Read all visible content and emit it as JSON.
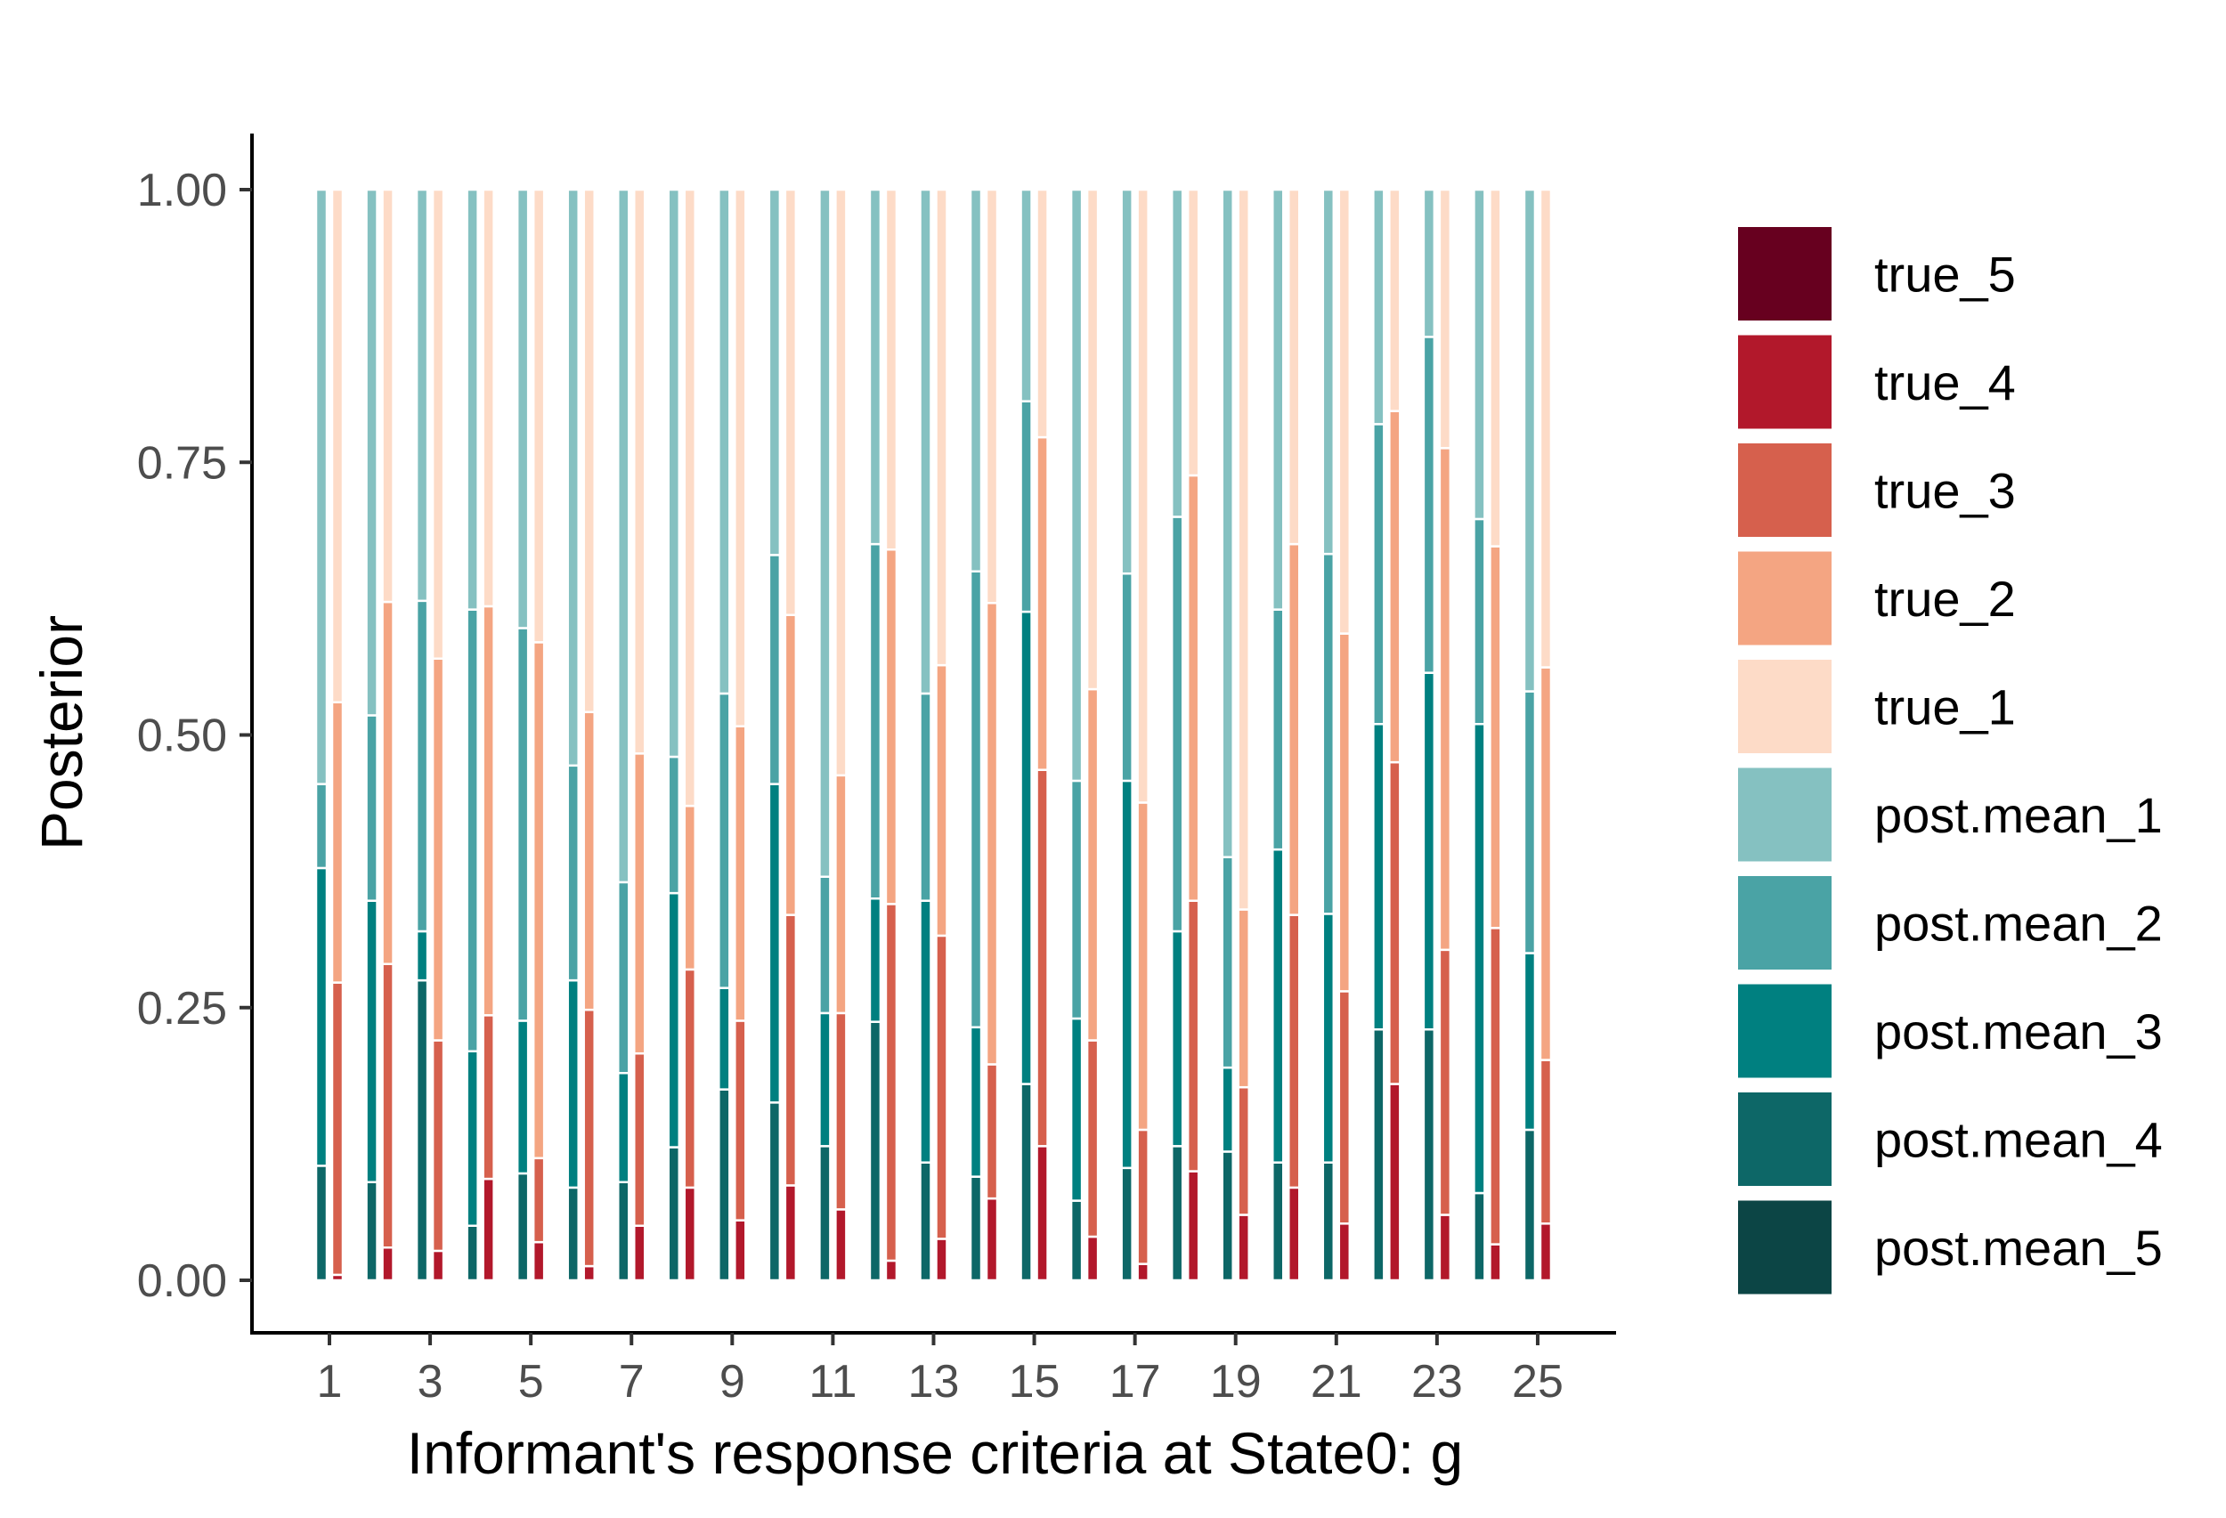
{
  "chart_data": {
    "type": "bar",
    "stacked": true,
    "grouped_pairs": true,
    "xlabel": "Informant's response criteria at State0: g",
    "ylabel": "Posterior",
    "ylim": [
      0,
      1
    ],
    "yticks": [
      "0.00",
      "0.25",
      "0.50",
      "0.75",
      "1.00"
    ],
    "yticks_values": [
      0,
      0.25,
      0.5,
      0.75,
      1.0
    ],
    "xticks": [
      "1",
      "3",
      "5",
      "7",
      "9",
      "11",
      "13",
      "15",
      "17",
      "19",
      "21",
      "23",
      "25"
    ],
    "grid": false,
    "legend_position": "right",
    "legend": [
      {
        "name": "true_5",
        "color": "#67001F"
      },
      {
        "name": "true_4",
        "color": "#B2182B"
      },
      {
        "name": "true_3",
        "color": "#D6604D"
      },
      {
        "name": "true_2",
        "color": "#F4A582"
      },
      {
        "name": "true_1",
        "color": "#FDDBC7"
      },
      {
        "name": "post.mean_1",
        "color": "#85C1C1"
      },
      {
        "name": "post.mean_2",
        "color": "#4AA3A5"
      },
      {
        "name": "post.mean_3",
        "color": "#008080"
      },
      {
        "name": "post.mean_4",
        "color": "#0D6767"
      },
      {
        "name": "post.mean_5",
        "color": "#0C4545"
      }
    ],
    "categories": [
      1,
      2,
      3,
      4,
      5,
      6,
      7,
      8,
      9,
      10,
      11,
      12,
      13,
      14,
      15,
      16,
      17,
      18,
      19,
      20,
      21,
      22,
      23,
      24,
      25
    ],
    "post_mean_series": [
      {
        "name": "post.mean_5",
        "values": [
          0,
          0,
          0,
          0,
          0,
          0,
          0,
          0,
          0,
          0,
          0,
          0,
          0,
          0,
          0,
          0,
          0,
          0,
          0,
          0,
          0,
          0,
          0,
          0,
          0
        ]
      },
      {
        "name": "post.mean_4",
        "values": [
          0.105,
          0.09,
          0.275,
          0.05,
          0.098,
          0.085,
          0.09,
          0.122,
          0.175,
          0.163,
          0.123,
          0.237,
          0.108,
          0.095,
          0.18,
          0.073,
          0.103,
          0.123,
          0.118,
          0.108,
          0.108,
          0.23,
          0.23,
          0.08,
          0.138
        ]
      },
      {
        "name": "post.mean_3",
        "values": [
          0.273,
          0.258,
          0.045,
          0.16,
          0.14,
          0.19,
          0.1,
          0.233,
          0.093,
          0.292,
          0.122,
          0.113,
          0.24,
          0.137,
          0.433,
          0.167,
          0.355,
          0.197,
          0.077,
          0.287,
          0.228,
          0.28,
          0.327,
          0.43,
          0.162
        ]
      },
      {
        "name": "post.mean_2",
        "values": [
          0.077,
          0.17,
          0.303,
          0.405,
          0.36,
          0.197,
          0.175,
          0.125,
          0.27,
          0.21,
          0.125,
          0.325,
          0.19,
          0.418,
          0.193,
          0.218,
          0.19,
          0.38,
          0.193,
          0.22,
          0.33,
          0.275,
          0.308,
          0.188,
          0.24
        ]
      },
      {
        "name": "post.mean_1",
        "values": [
          0.545,
          0.482,
          0.377,
          0.385,
          0.402,
          0.528,
          0.635,
          0.52,
          0.462,
          0.335,
          0.63,
          0.325,
          0.462,
          0.35,
          0.194,
          0.542,
          0.352,
          0.3,
          0.612,
          0.385,
          0.334,
          0.215,
          0.135,
          0.302,
          0.46
        ]
      }
    ],
    "true_series": [
      {
        "name": "true_5",
        "values": [
          0,
          0,
          0,
          0,
          0,
          0,
          0,
          0,
          0,
          0,
          0,
          0,
          0,
          0,
          0,
          0,
          0,
          0,
          0,
          0,
          0,
          0,
          0,
          0,
          0
        ]
      },
      {
        "name": "true_4",
        "values": [
          0.005,
          0.03,
          0.027,
          0.093,
          0.035,
          0.013,
          0.05,
          0.085,
          0.055,
          0.087,
          0.065,
          0.018,
          0.038,
          0.075,
          0.123,
          0.04,
          0.015,
          0.1,
          0.06,
          0.085,
          0.052,
          0.18,
          0.06,
          0.033,
          0.052
        ]
      },
      {
        "name": "true_3",
        "values": [
          0.268,
          0.26,
          0.193,
          0.15,
          0.077,
          0.235,
          0.158,
          0.2,
          0.183,
          0.248,
          0.18,
          0.327,
          0.278,
          0.123,
          0.345,
          0.18,
          0.123,
          0.248,
          0.117,
          0.25,
          0.213,
          0.295,
          0.243,
          0.29,
          0.15
        ]
      },
      {
        "name": "true_2",
        "values": [
          0.257,
          0.332,
          0.35,
          0.375,
          0.473,
          0.273,
          0.275,
          0.15,
          0.27,
          0.275,
          0.218,
          0.325,
          0.248,
          0.423,
          0.305,
          0.322,
          0.3,
          0.39,
          0.163,
          0.34,
          0.328,
          0.322,
          0.46,
          0.35,
          0.36
        ]
      },
      {
        "name": "true_1",
        "values": [
          0.47,
          0.378,
          0.43,
          0.382,
          0.415,
          0.479,
          0.517,
          0.565,
          0.492,
          0.39,
          0.537,
          0.33,
          0.436,
          0.379,
          0.227,
          0.458,
          0.562,
          0.262,
          0.66,
          0.325,
          0.407,
          0.203,
          0.237,
          0.327,
          0.438
        ]
      }
    ]
  }
}
